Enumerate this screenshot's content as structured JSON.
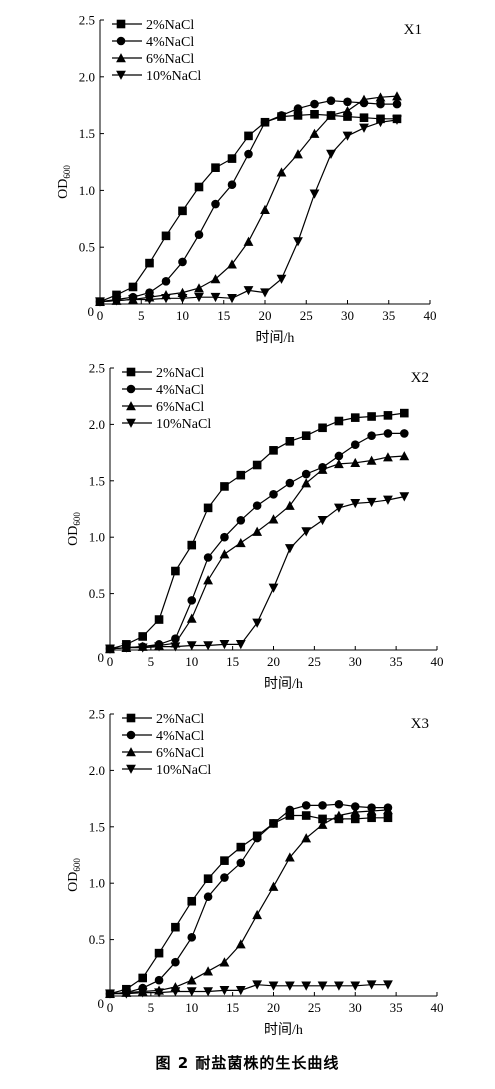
{
  "caption": "图 2   耐盐菌株的生长曲线",
  "chart_data": [
    {
      "type": "line",
      "title": "X1",
      "xlabel": "时间/h",
      "ylabel": "OD",
      "ylabel_sub": "600",
      "xlim": [
        0,
        40
      ],
      "ylim": [
        0,
        2.5
      ],
      "xticks": [
        0,
        5,
        10,
        15,
        20,
        25,
        30,
        35,
        40
      ],
      "yticks": [
        0.5,
        1.0,
        1.5,
        2.0,
        2.5
      ],
      "ytick_labels": [
        "0.5",
        "1.0",
        "1.5",
        "2.0",
        "2.5"
      ],
      "legend": "top-left",
      "grid": false,
      "series": [
        {
          "name": "2%NaCl",
          "marker": "square",
          "x": [
            0,
            2,
            4,
            6,
            8,
            10,
            12,
            14,
            16,
            18,
            20,
            22,
            24,
            26,
            28,
            30,
            32,
            34,
            36
          ],
          "y": [
            0.02,
            0.08,
            0.15,
            0.36,
            0.6,
            0.82,
            1.03,
            1.2,
            1.28,
            1.48,
            1.6,
            1.65,
            1.66,
            1.67,
            1.66,
            1.65,
            1.64,
            1.63,
            1.63
          ]
        },
        {
          "name": "4%NaCl",
          "marker": "circle",
          "x": [
            0,
            2,
            4,
            6,
            8,
            10,
            12,
            14,
            16,
            18,
            20,
            22,
            24,
            26,
            28,
            30,
            32,
            34,
            36
          ],
          "y": [
            0.02,
            0.04,
            0.06,
            0.1,
            0.2,
            0.37,
            0.61,
            0.88,
            1.05,
            1.32,
            1.6,
            1.66,
            1.72,
            1.76,
            1.79,
            1.78,
            1.77,
            1.76,
            1.76
          ]
        },
        {
          "name": "6%NaCl",
          "marker": "triangle-up",
          "x": [
            0,
            2,
            4,
            6,
            8,
            10,
            12,
            14,
            16,
            18,
            20,
            22,
            24,
            26,
            28,
            30,
            32,
            34,
            36
          ],
          "y": [
            0.02,
            0.03,
            0.04,
            0.06,
            0.08,
            0.1,
            0.14,
            0.22,
            0.35,
            0.55,
            0.83,
            1.16,
            1.32,
            1.5,
            1.66,
            1.7,
            1.8,
            1.82,
            1.83
          ]
        },
        {
          "name": "10%NaCl",
          "marker": "triangle-down",
          "x": [
            0,
            2,
            4,
            6,
            8,
            10,
            12,
            14,
            16,
            18,
            20,
            22,
            24,
            26,
            28,
            30,
            32,
            34,
            36
          ],
          "y": [
            0.02,
            0.03,
            0.04,
            0.04,
            0.05,
            0.05,
            0.06,
            0.06,
            0.05,
            0.12,
            0.1,
            0.22,
            0.55,
            0.97,
            1.32,
            1.48,
            1.55,
            1.6,
            1.62
          ]
        }
      ]
    },
    {
      "type": "line",
      "title": "X2",
      "xlabel": "时间/h",
      "ylabel": "OD",
      "ylabel_sub": "600",
      "xlim": [
        0,
        40
      ],
      "ylim": [
        0,
        2.5
      ],
      "xticks": [
        0,
        5,
        10,
        15,
        20,
        25,
        30,
        35,
        40
      ],
      "yticks": [
        0.5,
        1.0,
        1.5,
        2.0,
        2.5
      ],
      "ytick_labels": [
        "0.5",
        "1.0",
        "1.5",
        "2.0",
        "2.5"
      ],
      "legend": "top-left",
      "grid": false,
      "series": [
        {
          "name": "2%NaCl",
          "marker": "square",
          "x": [
            0,
            2,
            4,
            6,
            8,
            10,
            12,
            14,
            16,
            18,
            20,
            22,
            24,
            26,
            28,
            30,
            32,
            34,
            36
          ],
          "y": [
            0.01,
            0.05,
            0.12,
            0.27,
            0.7,
            0.93,
            1.26,
            1.45,
            1.55,
            1.64,
            1.77,
            1.85,
            1.9,
            1.97,
            2.03,
            2.06,
            2.07,
            2.08,
            2.1
          ]
        },
        {
          "name": "4%NaCl",
          "marker": "circle",
          "x": [
            0,
            2,
            4,
            6,
            8,
            10,
            12,
            14,
            16,
            18,
            20,
            22,
            24,
            26,
            28,
            30,
            32,
            34,
            36
          ],
          "y": [
            0.01,
            0.02,
            0.03,
            0.05,
            0.1,
            0.44,
            0.82,
            1.0,
            1.15,
            1.28,
            1.38,
            1.48,
            1.56,
            1.62,
            1.72,
            1.82,
            1.9,
            1.92,
            1.92
          ]
        },
        {
          "name": "6%NaCl",
          "marker": "triangle-up",
          "x": [
            0,
            2,
            4,
            6,
            8,
            10,
            12,
            14,
            16,
            18,
            20,
            22,
            24,
            26,
            28,
            30,
            32,
            34,
            36
          ],
          "y": [
            0.01,
            0.02,
            0.03,
            0.04,
            0.06,
            0.28,
            0.62,
            0.85,
            0.95,
            1.05,
            1.16,
            1.28,
            1.48,
            1.6,
            1.65,
            1.66,
            1.68,
            1.71,
            1.72
          ]
        },
        {
          "name": "10%NaCl",
          "marker": "triangle-down",
          "x": [
            0,
            2,
            4,
            6,
            8,
            10,
            12,
            14,
            16,
            18,
            20,
            22,
            24,
            26,
            28,
            30,
            32,
            34,
            36
          ],
          "y": [
            0.01,
            0.02,
            0.02,
            0.03,
            0.03,
            0.04,
            0.04,
            0.05,
            0.05,
            0.24,
            0.55,
            0.9,
            1.05,
            1.15,
            1.26,
            1.3,
            1.31,
            1.33,
            1.36
          ]
        }
      ]
    },
    {
      "type": "line",
      "title": "X3",
      "xlabel": "时间/h",
      "ylabel": "OD",
      "ylabel_sub": "600",
      "xlim": [
        0,
        40
      ],
      "ylim": [
        0,
        2.5
      ],
      "xticks": [
        0,
        5,
        10,
        15,
        20,
        25,
        30,
        35,
        40
      ],
      "yticks": [
        0.5,
        1.0,
        1.5,
        2.0,
        2.5
      ],
      "ytick_labels": [
        "0.5",
        "1.0",
        "1.5",
        "2.0",
        "2.5"
      ],
      "legend": "top-left",
      "grid": false,
      "series": [
        {
          "name": "2%NaCl",
          "marker": "square",
          "x": [
            0,
            2,
            4,
            6,
            8,
            10,
            12,
            14,
            16,
            18,
            20,
            22,
            24,
            26,
            28,
            30,
            32,
            34
          ],
          "y": [
            0.02,
            0.06,
            0.16,
            0.38,
            0.61,
            0.84,
            1.04,
            1.2,
            1.32,
            1.42,
            1.53,
            1.6,
            1.6,
            1.57,
            1.57,
            1.57,
            1.58,
            1.58
          ]
        },
        {
          "name": "4%NaCl",
          "marker": "circle",
          "x": [
            0,
            2,
            4,
            6,
            8,
            10,
            12,
            14,
            16,
            18,
            20,
            22,
            24,
            26,
            28,
            30,
            32,
            34
          ],
          "y": [
            0.02,
            0.03,
            0.07,
            0.14,
            0.3,
            0.52,
            0.88,
            1.05,
            1.18,
            1.4,
            1.53,
            1.65,
            1.69,
            1.69,
            1.7,
            1.68,
            1.67,
            1.67
          ]
        },
        {
          "name": "6%NaCl",
          "marker": "triangle-up",
          "x": [
            0,
            2,
            4,
            6,
            8,
            10,
            12,
            14,
            16,
            18,
            20,
            22,
            24,
            26,
            28,
            30,
            32,
            34
          ],
          "y": [
            0.02,
            0.03,
            0.04,
            0.05,
            0.08,
            0.14,
            0.22,
            0.3,
            0.46,
            0.72,
            0.97,
            1.23,
            1.4,
            1.52,
            1.6,
            1.63,
            1.64,
            1.65
          ]
        },
        {
          "name": "10%NaCl",
          "marker": "triangle-down",
          "x": [
            0,
            2,
            4,
            6,
            8,
            10,
            12,
            14,
            16,
            18,
            20,
            22,
            24,
            26,
            28,
            30,
            32,
            34
          ],
          "y": [
            0.02,
            0.02,
            0.03,
            0.03,
            0.04,
            0.04,
            0.04,
            0.05,
            0.05,
            0.1,
            0.09,
            0.09,
            0.09,
            0.09,
            0.09,
            0.09,
            0.1,
            0.1
          ]
        }
      ]
    }
  ]
}
